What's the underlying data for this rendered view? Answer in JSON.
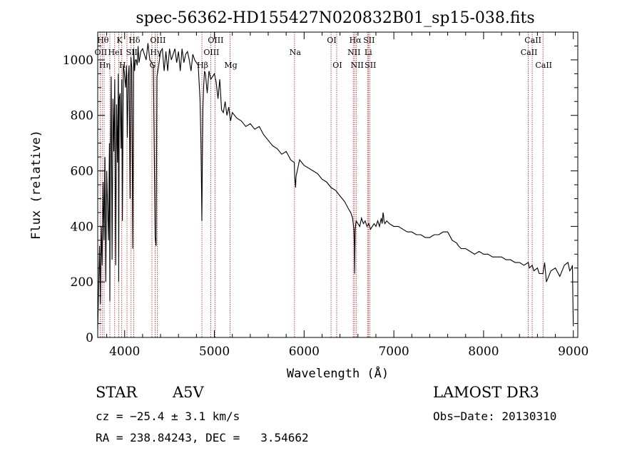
{
  "chart_data": {
    "type": "line",
    "title": "spec-56362-HD155427N020832B01_sp15-038.fits",
    "xlabel": "Wavelength (Å)",
    "ylabel": "Flux (relative)",
    "xlim": [
      3700,
      9050
    ],
    "ylim": [
      0,
      1100
    ],
    "xticks": [
      4000,
      5000,
      6000,
      7000,
      8000,
      9000
    ],
    "yticks": [
      0,
      200,
      400,
      600,
      800,
      1000
    ],
    "series": [
      {
        "name": "flux",
        "x": [
          3700,
          3710,
          3720,
          3730,
          3740,
          3750,
          3760,
          3770,
          3780,
          3790,
          3800,
          3810,
          3820,
          3830,
          3835,
          3840,
          3850,
          3860,
          3870,
          3880,
          3890,
          3900,
          3910,
          3920,
          3930,
          3934,
          3940,
          3950,
          3960,
          3968,
          3975,
          3985,
          3995,
          4010,
          4020,
          4030,
          4040,
          4050,
          4060,
          4070,
          4080,
          4090,
          4101,
          4110,
          4120,
          4130,
          4140,
          4150,
          4160,
          4180,
          4200,
          4220,
          4240,
          4260,
          4280,
          4300,
          4320,
          4340,
          4350,
          4360,
          4380,
          4400,
          4420,
          4440,
          4460,
          4480,
          4500,
          4520,
          4540,
          4560,
          4580,
          4600,
          4620,
          4640,
          4660,
          4680,
          4700,
          4720,
          4740,
          4760,
          4780,
          4800,
          4820,
          4830,
          4840,
          4850,
          4856,
          4861,
          4866,
          4872,
          4880,
          4890,
          4900,
          4920,
          4940,
          4960,
          4980,
          5000,
          5020,
          5040,
          5060,
          5080,
          5100,
          5120,
          5140,
          5160,
          5180,
          5200,
          5250,
          5300,
          5350,
          5400,
          5450,
          5500,
          5550,
          5600,
          5650,
          5700,
          5750,
          5800,
          5850,
          5890,
          5895,
          5900,
          5905,
          5910,
          5950,
          6000,
          6050,
          6100,
          6150,
          6200,
          6250,
          6300,
          6350,
          6400,
          6450,
          6500,
          6520,
          6540,
          6555,
          6560,
          6563,
          6566,
          6570,
          6580,
          6600,
          6620,
          6640,
          6660,
          6680,
          6700,
          6720,
          6740,
          6760,
          6780,
          6800,
          6820,
          6840,
          6860,
          6870,
          6880,
          6885,
          6890,
          6900,
          6920,
          6950,
          7000,
          7050,
          7100,
          7150,
          7200,
          7250,
          7300,
          7350,
          7400,
          7450,
          7500,
          7550,
          7600,
          7650,
          7700,
          7720,
          7750,
          7800,
          7850,
          7900,
          7950,
          8000,
          8050,
          8100,
          8150,
          8200,
          8250,
          8300,
          8350,
          8400,
          8450,
          8498,
          8510,
          8542,
          8560,
          8600,
          8620,
          8662,
          8680,
          8700,
          8750,
          8800,
          8850,
          8900,
          8940,
          8960,
          8980,
          8990,
          8995,
          9000
        ],
        "y": [
          30,
          180,
          330,
          120,
          400,
          260,
          560,
          350,
          650,
          200,
          600,
          470,
          350,
          700,
          130,
          560,
          940,
          280,
          860,
          670,
          930,
          260,
          840,
          630,
          950,
          200,
          860,
          880,
          680,
          930,
          420,
          980,
          960,
          900,
          980,
          720,
          940,
          980,
          500,
          1010,
          970,
          320,
          1040,
          960,
          1000,
          1000,
          980,
          1050,
          990,
          1030,
          1040,
          1020,
          1000,
          1060,
          1000,
          990,
          980,
          360,
          330,
          940,
          980,
          1030,
          1040,
          960,
          1030,
          960,
          1040,
          1000,
          1020,
          1040,
          990,
          1030,
          960,
          1040,
          990,
          1020,
          1030,
          1000,
          960,
          1020,
          1000,
          990,
          980,
          920,
          860,
          700,
          560,
          420,
          640,
          820,
          900,
          960,
          950,
          880,
          960,
          930,
          940,
          950,
          920,
          860,
          930,
          820,
          810,
          850,
          800,
          830,
          780,
          810,
          790,
          780,
          760,
          770,
          750,
          760,
          730,
          710,
          690,
          680,
          660,
          670,
          640,
          630,
          580,
          560,
          540,
          580,
          640,
          620,
          610,
          600,
          590,
          570,
          560,
          540,
          530,
          510,
          490,
          460,
          450,
          430,
          390,
          330,
          230,
          300,
          390,
          420,
          410,
          400,
          430,
          410,
          420,
          400,
          410,
          390,
          400,
          410,
          400,
          420,
          400,
          430,
          410,
          450,
          440,
          420,
          410,
          420,
          410,
          400,
          400,
          390,
          380,
          380,
          370,
          370,
          360,
          360,
          370,
          370,
          380,
          380,
          350,
          340,
          330,
          320,
          320,
          310,
          300,
          310,
          300,
          300,
          290,
          290,
          290,
          280,
          280,
          270,
          270,
          260,
          270,
          250,
          260,
          240,
          250,
          230,
          230,
          270,
          200,
          240,
          250,
          220,
          260,
          270,
          240,
          250,
          260,
          140,
          40
        ]
      }
    ]
  },
  "lines": [
    {
      "x": 3727,
      "label": "OII",
      "row": 1
    },
    {
      "x": 3750,
      "label": "Hθ",
      "row": 0
    },
    {
      "x": 3771,
      "label": "Hη",
      "row": 2
    },
    {
      "x": 3835,
      "label": "",
      "row": 0
    },
    {
      "x": 3889,
      "label": "HeI",
      "row": 1
    },
    {
      "x": 3934,
      "label": "K",
      "row": 0
    },
    {
      "x": 3968,
      "label": "H",
      "row": 2
    },
    {
      "x": 4026,
      "label": "",
      "row": 0
    },
    {
      "x": 4072,
      "label": "SII",
      "row": 1
    },
    {
      "x": 4101,
      "label": "Hδ",
      "row": 0
    },
    {
      "x": 4304,
      "label": "G",
      "row": 2
    },
    {
      "x": 4340,
      "label": "Hγ",
      "row": 1
    },
    {
      "x": 4363,
      "label": "OIII",
      "row": 0
    },
    {
      "x": 4861,
      "label": "Hβ",
      "row": 2
    },
    {
      "x": 4959,
      "label": "OIII",
      "row": 1
    },
    {
      "x": 5007,
      "label": "OIII",
      "row": 0
    },
    {
      "x": 5175,
      "label": "Mg",
      "row": 2
    },
    {
      "x": 5893,
      "label": "Na",
      "row": 1
    },
    {
      "x": 6300,
      "label": "OI",
      "row": 0
    },
    {
      "x": 6363,
      "label": "OI",
      "row": 2
    },
    {
      "x": 6548,
      "label": "NII",
      "row": 1
    },
    {
      "x": 6563,
      "label": "Hα",
      "row": 0
    },
    {
      "x": 6583,
      "label": "NII",
      "row": 2
    },
    {
      "x": 6707,
      "label": "Li",
      "row": 1
    },
    {
      "x": 6716,
      "label": "SII",
      "row": 0
    },
    {
      "x": 6731,
      "label": "SII",
      "row": 2
    },
    {
      "x": 8498,
      "label": "CaII",
      "row": 1
    },
    {
      "x": 8542,
      "label": "CaII",
      "row": 0
    },
    {
      "x": 8662,
      "label": "CaII",
      "row": 2
    }
  ],
  "info": {
    "class": "STAR",
    "subclass": "A5V",
    "survey": "LAMOST DR3",
    "cz": "cz = −25.4 ± 3.1 km/s",
    "obs_date": "Obs−Date: 20130310",
    "radec": "RA = 238.84243, DEC =   3.54662"
  }
}
